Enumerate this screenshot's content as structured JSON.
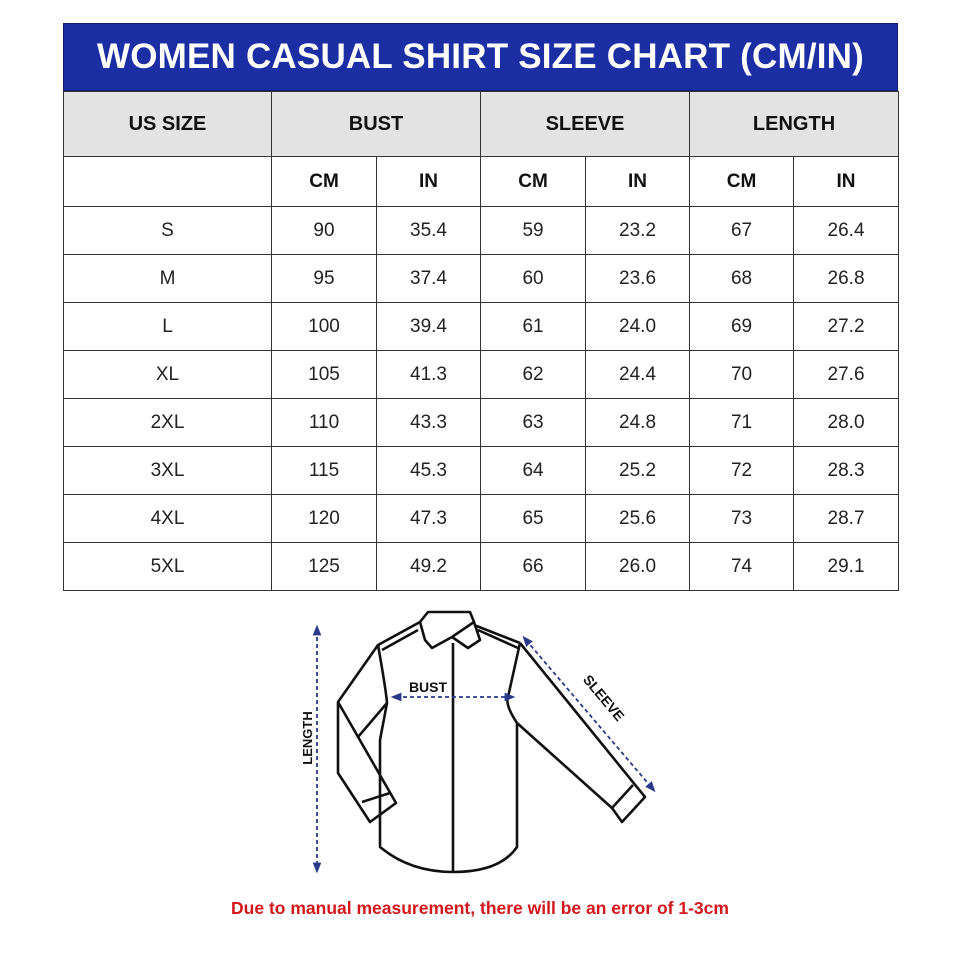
{
  "title": "WOMEN CASUAL SHIRT SIZE CHART (CM/IN)",
  "headers": {
    "size": "US SIZE",
    "bust": "BUST",
    "sleeve": "SLEEVE",
    "length": "LENGTH"
  },
  "units": [
    "CM",
    "IN",
    "CM",
    "IN",
    "CM",
    "IN"
  ],
  "rows": [
    [
      "S",
      "90",
      "35.4",
      "59",
      "23.2",
      "67",
      "26.4"
    ],
    [
      "M",
      "95",
      "37.4",
      "60",
      "23.6",
      "68",
      "26.8"
    ],
    [
      "L",
      "100",
      "39.4",
      "61",
      "24.0",
      "69",
      "27.2"
    ],
    [
      "XL",
      "105",
      "41.3",
      "62",
      "24.4",
      "70",
      "27.6"
    ],
    [
      "2XL",
      "110",
      "43.3",
      "63",
      "24.8",
      "71",
      "28.0"
    ],
    [
      "3XL",
      "115",
      "45.3",
      "64",
      "25.2",
      "72",
      "28.3"
    ],
    [
      "4XL",
      "120",
      "47.3",
      "65",
      "25.6",
      "73",
      "28.7"
    ],
    [
      "5XL",
      "125",
      "49.2",
      "66",
      "26.0",
      "74",
      "29.1"
    ]
  ],
  "diagram": {
    "bust_label": "BUST",
    "sleeve_label": "SLEEVE",
    "length_label": "LENGTH"
  },
  "note": "Due to manual measurement, there will be an error of 1-3cm",
  "colors": {
    "title_bg": "#1b2ea3",
    "header_bg": "#e3e3e3",
    "note": "#d3171b",
    "arrow": "#2a3a8a"
  }
}
